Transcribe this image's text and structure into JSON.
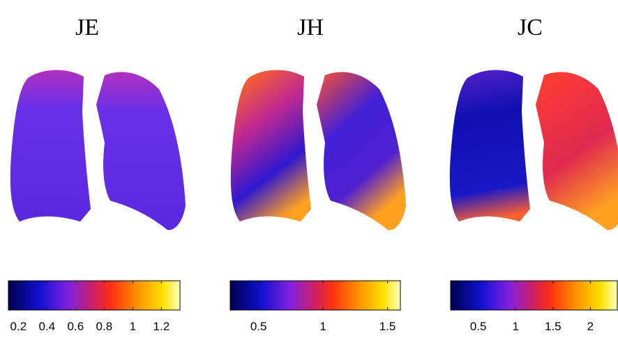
{
  "panels": [
    {
      "title": "JE",
      "colorbar": {
        "lim": [
          0.13,
          1.33
        ],
        "ticks": [
          0.2,
          0.4,
          0.6,
          0.8,
          1,
          1.2
        ]
      }
    },
    {
      "title": "JH",
      "colorbar": {
        "lim": [
          0.28,
          1.6
        ],
        "ticks": [
          0.5,
          1,
          1.5
        ]
      }
    },
    {
      "title": "JC",
      "colorbar": {
        "lim": [
          0.13,
          2.36
        ],
        "ticks": [
          0.5,
          1,
          1.5,
          2
        ]
      }
    }
  ]
}
